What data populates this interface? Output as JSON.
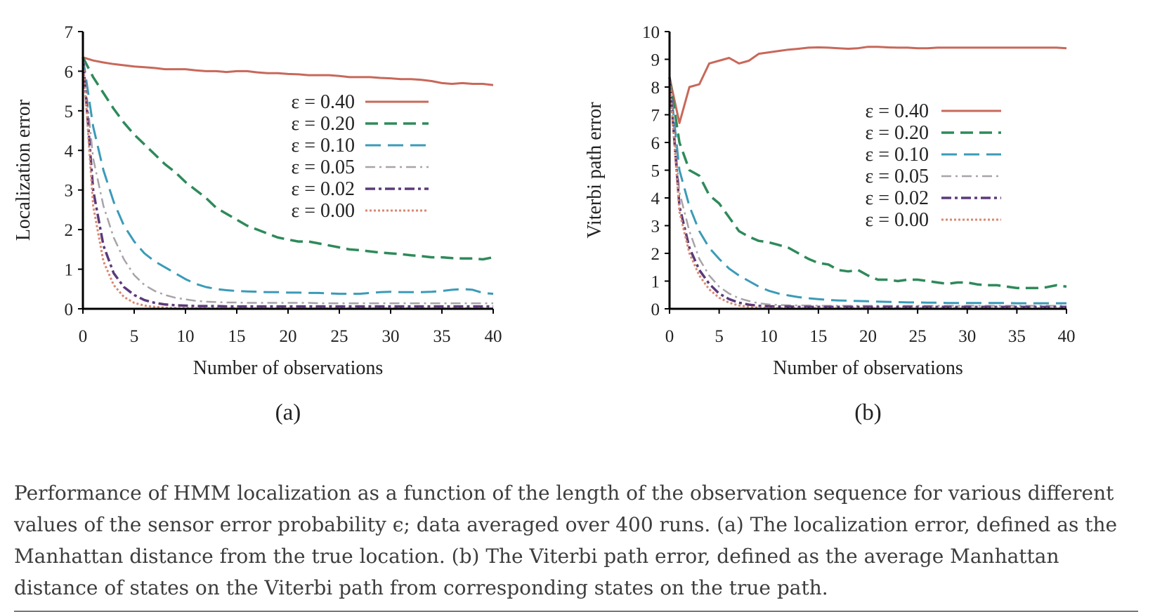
{
  "caption": "Performance of HMM localization as a function of the length of the observation sequence for various different values of the sensor error probability ϵ; data averaged over 400 runs. (a) The localization error, defined as the Manhattan distance from the true location. (b) The Viterbi path error, defined as the average Manhattan distance of states on the Viterbi path from corresponding states on the true path.",
  "chart_data": [
    {
      "type": "line",
      "panel_label": "(a)",
      "xlabel": "Number of observations",
      "ylabel": "Localization error",
      "xlim": [
        0,
        40
      ],
      "ylim": [
        0,
        7
      ],
      "xticks": [
        0,
        5,
        10,
        15,
        20,
        25,
        30,
        35,
        40
      ],
      "yticks": [
        0,
        1,
        2,
        3,
        4,
        5,
        6,
        7
      ],
      "grid": false,
      "legend_position": "upper-middle",
      "x": [
        0,
        1,
        2,
        3,
        4,
        5,
        6,
        7,
        8,
        9,
        10,
        11,
        12,
        13,
        14,
        15,
        16,
        17,
        18,
        19,
        20,
        21,
        22,
        23,
        24,
        25,
        26,
        27,
        28,
        29,
        30,
        31,
        32,
        33,
        34,
        35,
        36,
        37,
        38,
        39,
        40
      ],
      "series": [
        {
          "name": "ε = 0.40",
          "color": "#c8685a",
          "dash": "solid",
          "values": [
            6.35,
            6.27,
            6.22,
            6.18,
            6.15,
            6.12,
            6.1,
            6.08,
            6.05,
            6.05,
            6.05,
            6.02,
            6.0,
            6.0,
            5.98,
            6.0,
            6.0,
            5.97,
            5.95,
            5.95,
            5.93,
            5.92,
            5.9,
            5.9,
            5.9,
            5.88,
            5.85,
            5.85,
            5.85,
            5.83,
            5.82,
            5.8,
            5.8,
            5.78,
            5.75,
            5.7,
            5.68,
            5.7,
            5.68,
            5.68,
            5.65
          ]
        },
        {
          "name": "ε = 0.20",
          "color": "#2e8a5a",
          "dash": "long-dash",
          "values": [
            6.35,
            5.85,
            5.45,
            5.05,
            4.7,
            4.4,
            4.15,
            3.9,
            3.65,
            3.45,
            3.2,
            3.0,
            2.8,
            2.55,
            2.4,
            2.25,
            2.1,
            2.0,
            1.9,
            1.8,
            1.75,
            1.7,
            1.7,
            1.65,
            1.6,
            1.55,
            1.5,
            1.48,
            1.45,
            1.42,
            1.4,
            1.38,
            1.35,
            1.33,
            1.3,
            1.3,
            1.28,
            1.27,
            1.27,
            1.25,
            1.3
          ]
        },
        {
          "name": "ε = 0.10",
          "color": "#3a9bb8",
          "dash": "dash",
          "values": [
            6.35,
            4.6,
            3.5,
            2.7,
            2.1,
            1.7,
            1.4,
            1.2,
            1.05,
            0.9,
            0.75,
            0.63,
            0.55,
            0.5,
            0.47,
            0.45,
            0.44,
            0.43,
            0.42,
            0.42,
            0.41,
            0.41,
            0.4,
            0.4,
            0.39,
            0.38,
            0.38,
            0.38,
            0.4,
            0.42,
            0.43,
            0.42,
            0.42,
            0.42,
            0.43,
            0.45,
            0.48,
            0.5,
            0.48,
            0.4,
            0.38
          ]
        },
        {
          "name": "ε = 0.05",
          "color": "#a8a3a8",
          "dash": "dash-dot",
          "values": [
            6.35,
            3.8,
            2.6,
            1.8,
            1.25,
            0.85,
            0.6,
            0.45,
            0.35,
            0.28,
            0.24,
            0.2,
            0.18,
            0.17,
            0.16,
            0.16,
            0.15,
            0.15,
            0.15,
            0.15,
            0.15,
            0.15,
            0.15,
            0.14,
            0.14,
            0.14,
            0.14,
            0.14,
            0.14,
            0.14,
            0.14,
            0.14,
            0.14,
            0.14,
            0.14,
            0.14,
            0.14,
            0.14,
            0.14,
            0.14,
            0.14
          ]
        },
        {
          "name": "ε = 0.02",
          "color": "#5b3a7a",
          "dash": "dash-dot-heavy",
          "values": [
            6.35,
            3.0,
            1.6,
            0.9,
            0.55,
            0.35,
            0.22,
            0.15,
            0.11,
            0.09,
            0.08,
            0.07,
            0.07,
            0.07,
            0.06,
            0.06,
            0.06,
            0.06,
            0.06,
            0.06,
            0.06,
            0.06,
            0.06,
            0.06,
            0.06,
            0.06,
            0.06,
            0.06,
            0.06,
            0.06,
            0.06,
            0.06,
            0.06,
            0.06,
            0.06,
            0.06,
            0.06,
            0.06,
            0.06,
            0.06,
            0.06
          ]
        },
        {
          "name": "ε = 0.00",
          "color": "#d9886f",
          "dash": "dotted",
          "values": [
            6.35,
            2.6,
            1.2,
            0.6,
            0.3,
            0.15,
            0.08,
            0.05,
            0.03,
            0.02,
            0.02,
            0.01,
            0.01,
            0.01,
            0.01,
            0.01,
            0.01,
            0.01,
            0.01,
            0.01,
            0.01,
            0.01,
            0.01,
            0.01,
            0.01,
            0.01,
            0.01,
            0.01,
            0.01,
            0.01,
            0.01,
            0.01,
            0.01,
            0.01,
            0.01,
            0.01,
            0.01,
            0.01,
            0.01,
            0.01,
            0.01
          ]
        }
      ]
    },
    {
      "type": "line",
      "panel_label": "(b)",
      "xlabel": "Number of observations",
      "ylabel": "Viterbi path error",
      "xlim": [
        0,
        40
      ],
      "ylim": [
        0,
        10
      ],
      "xticks": [
        0,
        5,
        10,
        15,
        20,
        25,
        30,
        35,
        40
      ],
      "yticks": [
        0,
        1,
        2,
        3,
        4,
        5,
        6,
        7,
        8,
        9,
        10
      ],
      "grid": false,
      "legend_position": "center-right",
      "x": [
        0,
        1,
        2,
        3,
        4,
        5,
        6,
        7,
        8,
        9,
        10,
        11,
        12,
        13,
        14,
        15,
        16,
        17,
        18,
        19,
        20,
        21,
        22,
        23,
        24,
        25,
        26,
        27,
        28,
        29,
        30,
        31,
        32,
        33,
        34,
        35,
        36,
        37,
        38,
        39,
        40
      ],
      "series": [
        {
          "name": "ε = 0.40",
          "color": "#c8685a",
          "dash": "solid",
          "values": [
            8.35,
            6.7,
            8.0,
            8.1,
            8.85,
            8.95,
            9.05,
            8.85,
            8.95,
            9.2,
            9.25,
            9.3,
            9.35,
            9.38,
            9.42,
            9.43,
            9.42,
            9.4,
            9.38,
            9.4,
            9.45,
            9.45,
            9.43,
            9.42,
            9.42,
            9.4,
            9.4,
            9.42,
            9.42,
            9.42,
            9.42,
            9.42,
            9.42,
            9.42,
            9.42,
            9.42,
            9.42,
            9.42,
            9.42,
            9.42,
            9.4
          ]
        },
        {
          "name": "ε = 0.20",
          "color": "#2e8a5a",
          "dash": "long-dash",
          "values": [
            8.35,
            6.0,
            5.0,
            4.8,
            4.1,
            3.8,
            3.3,
            2.8,
            2.6,
            2.45,
            2.4,
            2.3,
            2.2,
            2.0,
            1.8,
            1.65,
            1.6,
            1.4,
            1.35,
            1.4,
            1.2,
            1.05,
            1.05,
            1.0,
            1.05,
            1.05,
            1.0,
            0.95,
            0.9,
            0.95,
            0.95,
            0.88,
            0.85,
            0.85,
            0.8,
            0.75,
            0.75,
            0.75,
            0.78,
            0.85,
            0.8
          ]
        },
        {
          "name": "ε = 0.10",
          "color": "#3a9bb8",
          "dash": "dash",
          "values": [
            8.35,
            5.0,
            3.7,
            2.8,
            2.2,
            1.8,
            1.45,
            1.2,
            1.0,
            0.8,
            0.65,
            0.55,
            0.48,
            0.42,
            0.38,
            0.35,
            0.32,
            0.3,
            0.29,
            0.28,
            0.27,
            0.26,
            0.25,
            0.24,
            0.23,
            0.23,
            0.22,
            0.22,
            0.21,
            0.21,
            0.21,
            0.21,
            0.21,
            0.21,
            0.21,
            0.2,
            0.2,
            0.2,
            0.2,
            0.2,
            0.2
          ]
        },
        {
          "name": "ε = 0.05",
          "color": "#a8a3a8",
          "dash": "dash-dot",
          "values": [
            8.35,
            4.2,
            2.8,
            1.8,
            1.2,
            0.8,
            0.55,
            0.38,
            0.28,
            0.2,
            0.16,
            0.14,
            0.13,
            0.12,
            0.12,
            0.11,
            0.11,
            0.11,
            0.11,
            0.11,
            0.11,
            0.11,
            0.11,
            0.11,
            0.11,
            0.11,
            0.11,
            0.11,
            0.11,
            0.11,
            0.11,
            0.11,
            0.11,
            0.11,
            0.11,
            0.11,
            0.11,
            0.11,
            0.11,
            0.11,
            0.11
          ]
        },
        {
          "name": "ε = 0.02",
          "color": "#5b3a7a",
          "dash": "dash-dot-heavy",
          "values": [
            8.35,
            3.7,
            2.2,
            1.4,
            0.9,
            0.55,
            0.35,
            0.22,
            0.15,
            0.11,
            0.09,
            0.08,
            0.08,
            0.07,
            0.07,
            0.07,
            0.07,
            0.07,
            0.07,
            0.07,
            0.07,
            0.07,
            0.07,
            0.07,
            0.07,
            0.07,
            0.07,
            0.07,
            0.07,
            0.07,
            0.07,
            0.07,
            0.07,
            0.07,
            0.07,
            0.07,
            0.07,
            0.07,
            0.07,
            0.07,
            0.07
          ]
        },
        {
          "name": "ε = 0.00",
          "color": "#d9886f",
          "dash": "dotted",
          "values": [
            8.35,
            3.5,
            2.0,
            1.2,
            0.7,
            0.4,
            0.22,
            0.12,
            0.07,
            0.04,
            0.03,
            0.02,
            0.02,
            0.02,
            0.02,
            0.02,
            0.02,
            0.02,
            0.02,
            0.02,
            0.02,
            0.02,
            0.02,
            0.02,
            0.02,
            0.02,
            0.02,
            0.02,
            0.02,
            0.02,
            0.02,
            0.02,
            0.02,
            0.02,
            0.02,
            0.02,
            0.02,
            0.02,
            0.02,
            0.02,
            0.02
          ]
        }
      ]
    }
  ]
}
